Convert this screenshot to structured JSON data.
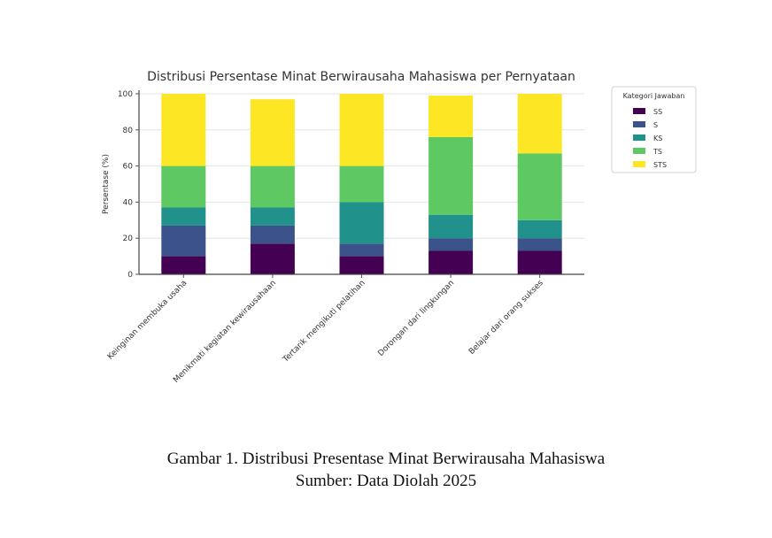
{
  "chart_data": {
    "type": "bar",
    "stacked": true,
    "title": "Distribusi Persentase Minat Berwirausaha Mahasiswa per Pernyataan",
    "xlabel": "",
    "ylabel": "Persentase (%)",
    "ylim": [
      0,
      100
    ],
    "yticks": [
      0,
      20,
      40,
      60,
      80,
      100
    ],
    "grid": true,
    "legend_title": "Kategori Jawaban",
    "legend_position": "right-top",
    "categories": [
      "Keinginan membuka usaha",
      "Menikmati kegiatan kewirausahaan",
      "Tertarik mengikuti pelatihan",
      "Dorongan dari lingkungan",
      "Belajar dari orang sukses"
    ],
    "series": [
      {
        "name": "SS",
        "color": "#440154",
        "values": [
          10,
          17,
          10,
          13,
          13
        ]
      },
      {
        "name": "S",
        "color": "#3b528b",
        "values": [
          17,
          10,
          7,
          7,
          7
        ]
      },
      {
        "name": "KS",
        "color": "#21918c",
        "values": [
          10,
          10,
          23,
          13,
          10
        ]
      },
      {
        "name": "TS",
        "color": "#5ec962",
        "values": [
          23,
          23,
          20,
          43,
          37
        ]
      },
      {
        "name": "STS",
        "color": "#fde725",
        "values": [
          40,
          37,
          40,
          23,
          33
        ]
      }
    ]
  },
  "caption": {
    "line1": "Gambar 1. Distribusi Presentase Minat Berwirausaha Mahasiswa",
    "line2": "Sumber: Data Diolah 2025"
  }
}
